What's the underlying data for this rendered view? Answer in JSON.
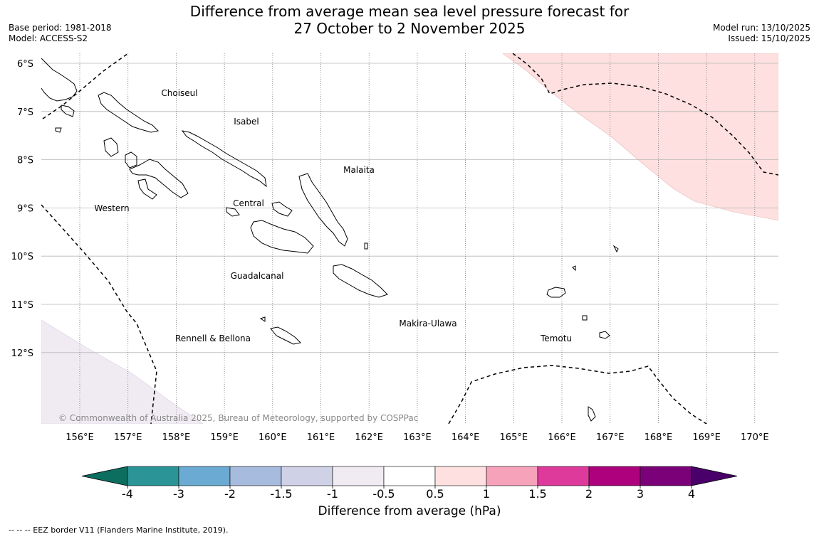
{
  "header": {
    "title_line1": "Difference from average mean sea level pressure forecast for",
    "title_line2": "27 October to 2 November 2025",
    "base_period": "Base period: 1981-2018",
    "model": "Model: ACCESS-S2",
    "model_run": "Model run: 13/10/2025",
    "issued": "Issued: 15/10/2025"
  },
  "map": {
    "lat_labels": [
      "6°S",
      "7°S",
      "8°S",
      "9°S",
      "10°S",
      "11°S",
      "12°S"
    ],
    "lon_labels": [
      "156°E",
      "157°E",
      "158°E",
      "159°E",
      "160°E",
      "161°E",
      "162°E",
      "163°E",
      "164°E",
      "165°E",
      "166°E",
      "167°E",
      "168°E",
      "169°E",
      "170°E"
    ],
    "province_labels": [
      "Choiseul",
      "Isabel",
      "Malaita",
      "Western",
      "Central",
      "Guadalcanal",
      "Makira-Ulawa",
      "Rennell & Bellona",
      "Temotu"
    ],
    "copyright": "© Commonwealth of Australia 2025, Bureau of Meteorology, supported by COSPPac"
  },
  "colorbar": {
    "title": "Difference from average (hPa)",
    "tick_labels": [
      "-4",
      "-3",
      "-2",
      "-1.5",
      "-1",
      "-0.5",
      "0.5",
      "1",
      "1.5",
      "2",
      "3",
      "4"
    ],
    "colors": [
      "#0b6e5f",
      "#2a9497",
      "#6aaad3",
      "#a6bbdd",
      "#cfd1e6",
      "#f0ebf3",
      "#ffffff",
      "#fde0df",
      "#f7a2bb",
      "#de3a9c",
      "#ae017e",
      "#7a0177",
      "#49006a"
    ]
  },
  "footer": {
    "eez_note": "--  --  -- EEZ border V11 (Flanders Marine Institute, 2019)."
  }
}
